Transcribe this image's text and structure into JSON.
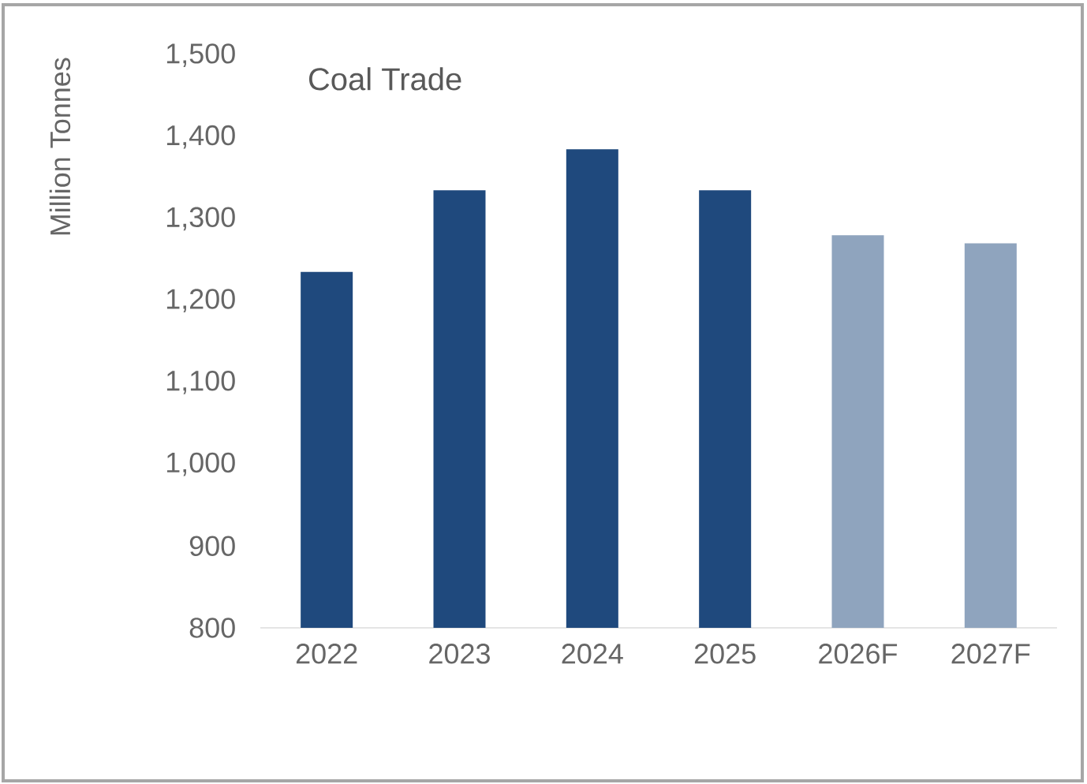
{
  "chart_data": {
    "type": "bar",
    "title": "Coal Trade",
    "ylabel": "Million  Tonnes",
    "categories": [
      "2022",
      "2023",
      "2024",
      "2025",
      "2026F",
      "2027F"
    ],
    "values": [
      1235,
      1335,
      1385,
      1335,
      1280,
      1270
    ],
    "colors": [
      "#1f497d",
      "#1f497d",
      "#1f497d",
      "#1f497d",
      "#8fa4be",
      "#8fa4be"
    ],
    "ylim": [
      800,
      1500
    ],
    "yticks": [
      {
        "value": 800,
        "label": "800"
      },
      {
        "value": 900,
        "label": "900"
      },
      {
        "value": 1000,
        "label": "1,000"
      },
      {
        "value": 1100,
        "label": "1,100"
      },
      {
        "value": 1200,
        "label": "1,200"
      },
      {
        "value": 1300,
        "label": "1,300"
      },
      {
        "value": 1400,
        "label": "1,400"
      },
      {
        "value": 1500,
        "label": "1,500"
      }
    ],
    "grid": false
  }
}
